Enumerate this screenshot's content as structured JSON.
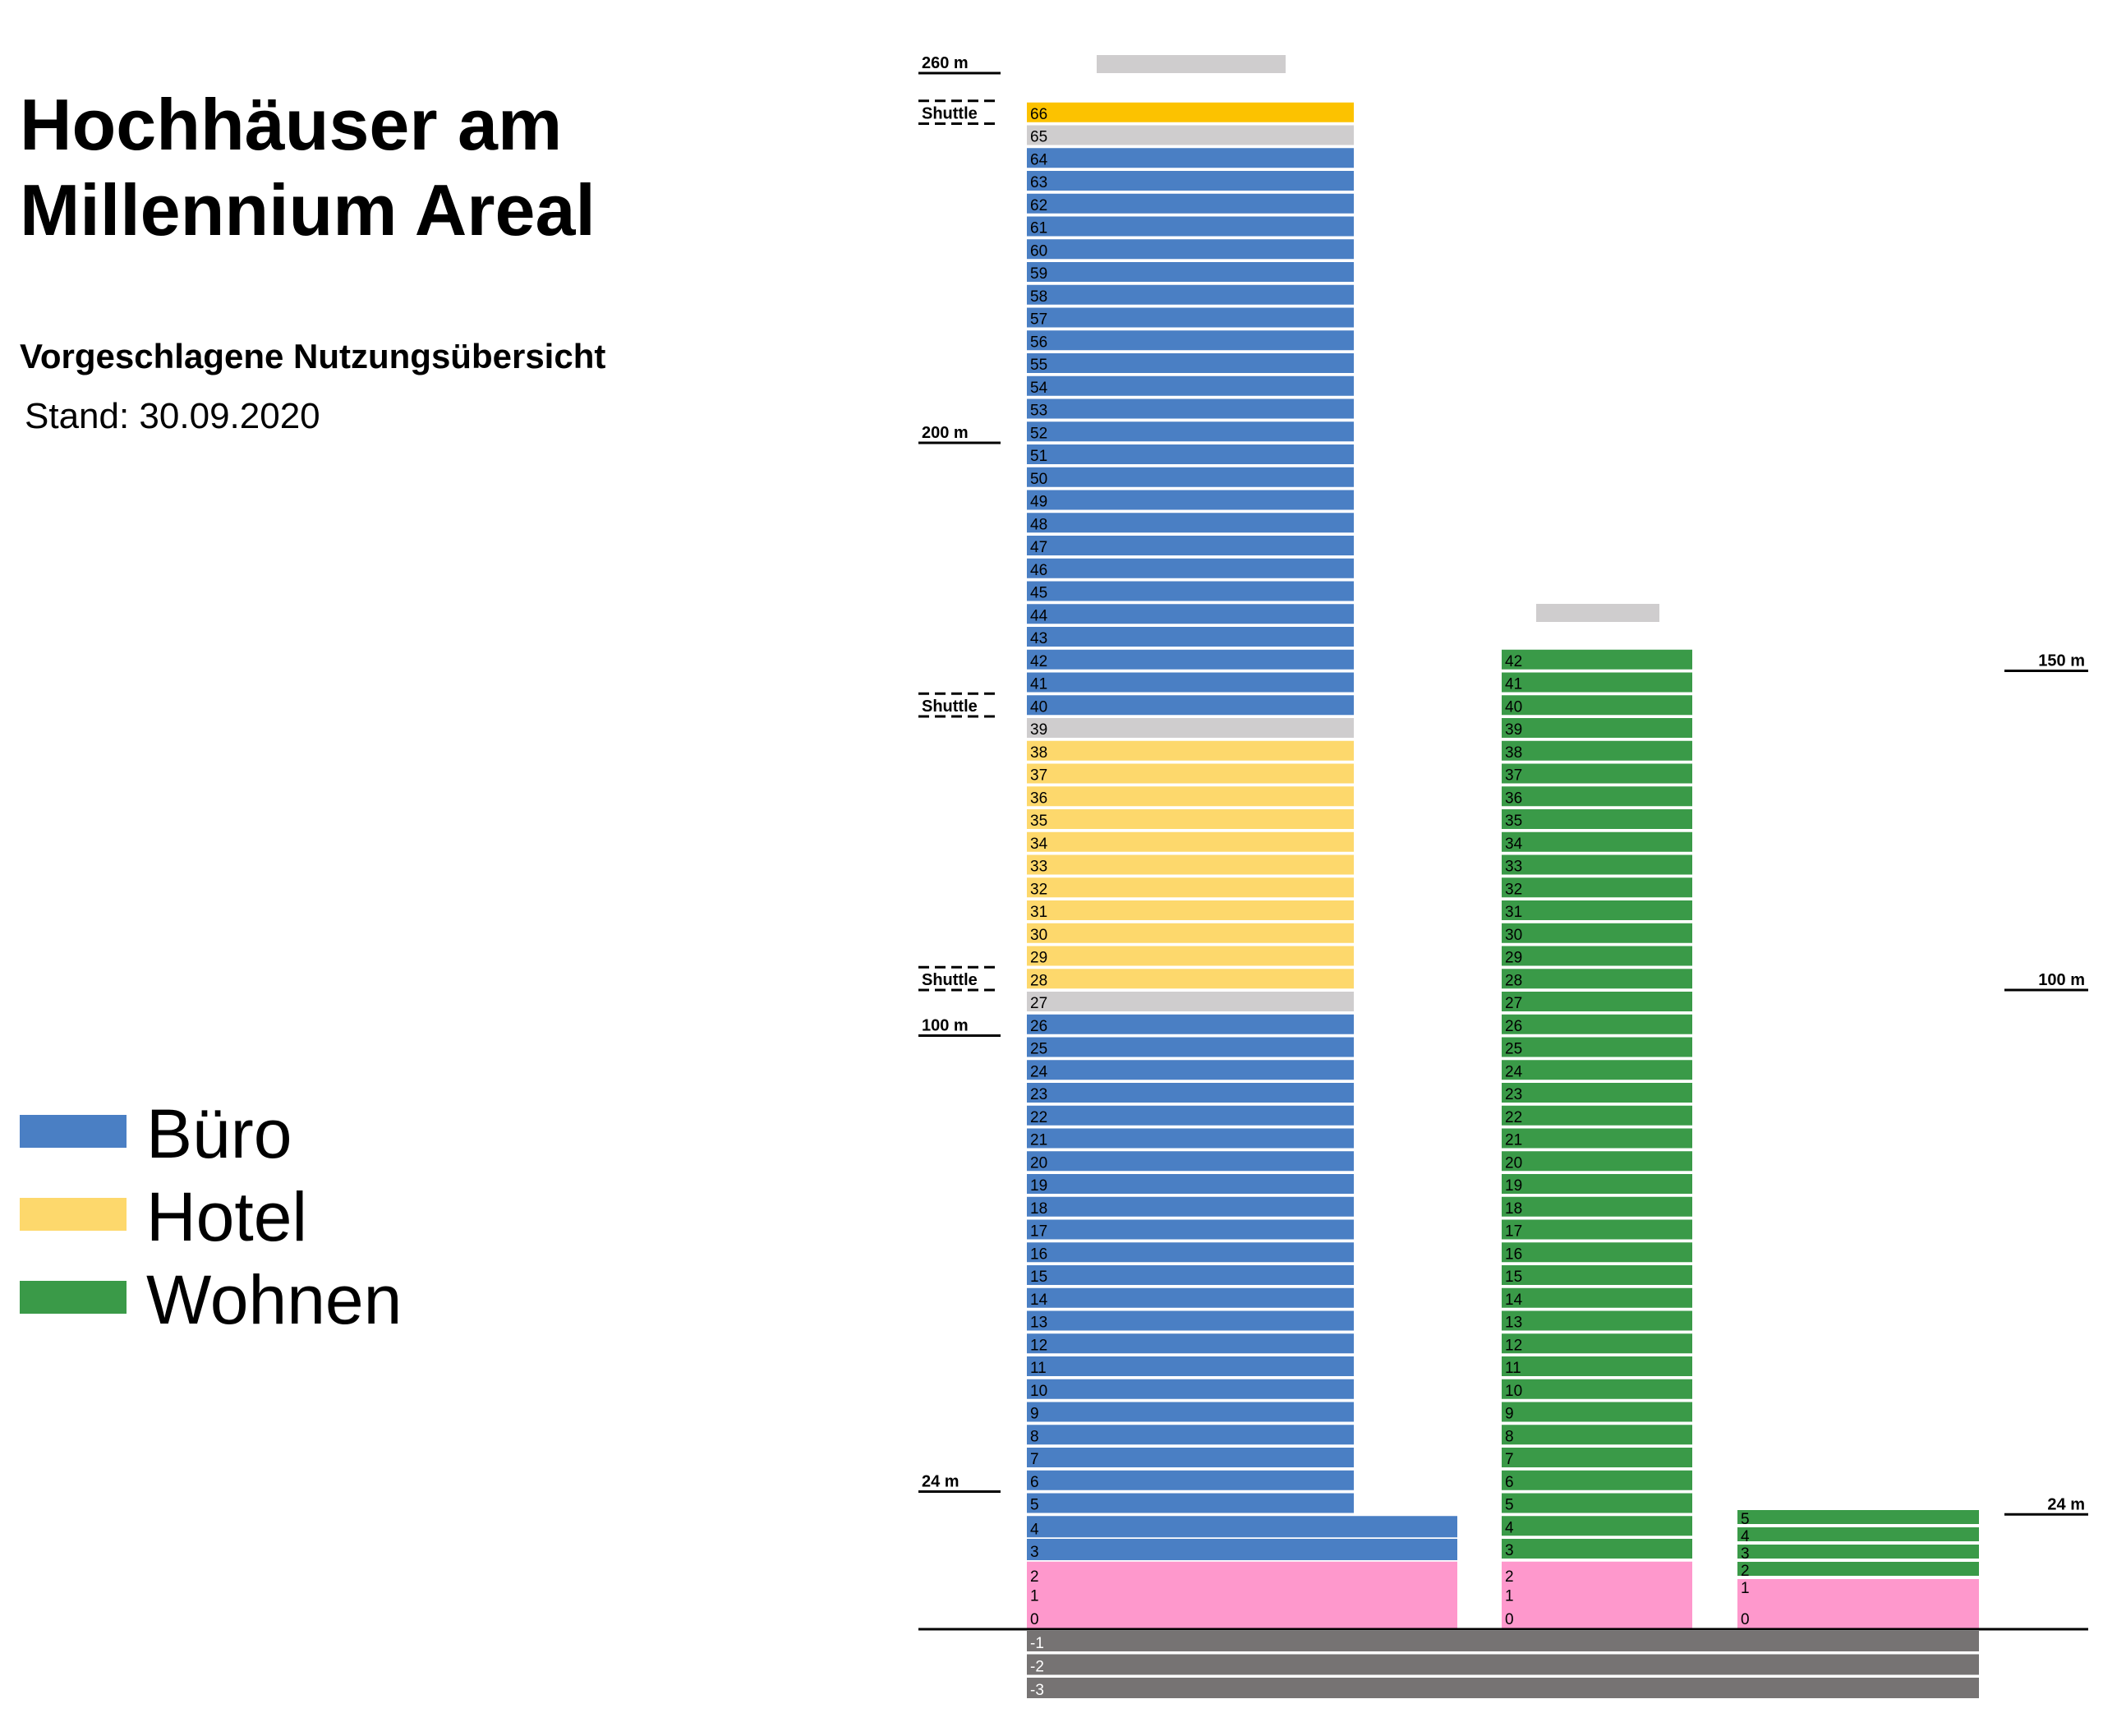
{
  "title": {
    "line1": "Hochhäuser am",
    "line2": "Millennium Areal"
  },
  "subtitle": "Vorgeschlagene Nutzungsübersicht",
  "date": "Stand: 30.09.2020",
  "colors": {
    "buero": "#4a7fc4",
    "hotel": "#fdd86c",
    "hotel_roof": "#fcc200",
    "wohnen": "#3a9a48",
    "gewerbe": "#fe98cc",
    "technik": "#cfcdce",
    "tiefgarage": "#767373",
    "marker": "#000000"
  },
  "legend": [
    {
      "label": "Büro",
      "color_key": "buero"
    },
    {
      "label": "Hotel",
      "color_key": "hotel"
    },
    {
      "label": "Wohnen",
      "color_key": "wohnen"
    }
  ],
  "towers": [
    {
      "id": "tower-1",
      "floors": [
        {
          "label": "66",
          "use": "hotel_roof"
        },
        {
          "label": "65",
          "use": "technik"
        },
        {
          "label": "64",
          "use": "buero"
        },
        {
          "label": "63",
          "use": "buero"
        },
        {
          "label": "62",
          "use": "buero"
        },
        {
          "label": "61",
          "use": "buero"
        },
        {
          "label": "60",
          "use": "buero"
        },
        {
          "label": "59",
          "use": "buero"
        },
        {
          "label": "58",
          "use": "buero"
        },
        {
          "label": "57",
          "use": "buero"
        },
        {
          "label": "56",
          "use": "buero"
        },
        {
          "label": "55",
          "use": "buero"
        },
        {
          "label": "54",
          "use": "buero"
        },
        {
          "label": "53",
          "use": "buero"
        },
        {
          "label": "52",
          "use": "buero"
        },
        {
          "label": "51",
          "use": "buero"
        },
        {
          "label": "50",
          "use": "buero"
        },
        {
          "label": "49",
          "use": "buero"
        },
        {
          "label": "48",
          "use": "buero"
        },
        {
          "label": "47",
          "use": "buero"
        },
        {
          "label": "46",
          "use": "buero"
        },
        {
          "label": "45",
          "use": "buero"
        },
        {
          "label": "44",
          "use": "buero"
        },
        {
          "label": "43",
          "use": "buero"
        },
        {
          "label": "42",
          "use": "buero"
        },
        {
          "label": "41",
          "use": "buero"
        },
        {
          "label": "40",
          "use": "buero"
        },
        {
          "label": "39",
          "use": "technik"
        },
        {
          "label": "38",
          "use": "hotel"
        },
        {
          "label": "37",
          "use": "hotel"
        },
        {
          "label": "36",
          "use": "hotel"
        },
        {
          "label": "35",
          "use": "hotel"
        },
        {
          "label": "34",
          "use": "hotel"
        },
        {
          "label": "33",
          "use": "hotel"
        },
        {
          "label": "32",
          "use": "hotel"
        },
        {
          "label": "31",
          "use": "hotel"
        },
        {
          "label": "30",
          "use": "hotel"
        },
        {
          "label": "29",
          "use": "hotel"
        },
        {
          "label": "28",
          "use": "hotel"
        },
        {
          "label": "27",
          "use": "technik"
        },
        {
          "label": "26",
          "use": "buero"
        },
        {
          "label": "25",
          "use": "buero"
        },
        {
          "label": "24",
          "use": "buero"
        },
        {
          "label": "23",
          "use": "buero"
        },
        {
          "label": "22",
          "use": "buero"
        },
        {
          "label": "21",
          "use": "buero"
        },
        {
          "label": "20",
          "use": "buero"
        },
        {
          "label": "19",
          "use": "buero"
        },
        {
          "label": "18",
          "use": "buero"
        },
        {
          "label": "17",
          "use": "buero"
        },
        {
          "label": "16",
          "use": "buero"
        },
        {
          "label": "15",
          "use": "buero"
        },
        {
          "label": "14",
          "use": "buero"
        },
        {
          "label": "13",
          "use": "buero"
        },
        {
          "label": "12",
          "use": "buero"
        },
        {
          "label": "11",
          "use": "buero"
        },
        {
          "label": "10",
          "use": "buero"
        },
        {
          "label": "9",
          "use": "buero"
        },
        {
          "label": "8",
          "use": "buero"
        },
        {
          "label": "7",
          "use": "buero"
        },
        {
          "label": "6",
          "use": "buero"
        },
        {
          "label": "5",
          "use": "buero"
        }
      ],
      "podium": [
        {
          "label": "4",
          "use": "buero"
        },
        {
          "label": "3",
          "use": "buero"
        },
        {
          "label": "2",
          "use": "gewerbe"
        },
        {
          "label": "1",
          "use": "gewerbe"
        },
        {
          "label": "0",
          "use": "gewerbe"
        }
      ]
    },
    {
      "id": "tower-2",
      "floors": [
        {
          "label": "42",
          "use": "wohnen"
        },
        {
          "label": "41",
          "use": "wohnen"
        },
        {
          "label": "40",
          "use": "wohnen"
        },
        {
          "label": "39",
          "use": "wohnen"
        },
        {
          "label": "38",
          "use": "wohnen"
        },
        {
          "label": "37",
          "use": "wohnen"
        },
        {
          "label": "36",
          "use": "wohnen"
        },
        {
          "label": "35",
          "use": "wohnen"
        },
        {
          "label": "34",
          "use": "wohnen"
        },
        {
          "label": "33",
          "use": "wohnen"
        },
        {
          "label": "32",
          "use": "wohnen"
        },
        {
          "label": "31",
          "use": "wohnen"
        },
        {
          "label": "30",
          "use": "wohnen"
        },
        {
          "label": "29",
          "use": "wohnen"
        },
        {
          "label": "28",
          "use": "wohnen"
        },
        {
          "label": "27",
          "use": "wohnen"
        },
        {
          "label": "26",
          "use": "wohnen"
        },
        {
          "label": "25",
          "use": "wohnen"
        },
        {
          "label": "24",
          "use": "wohnen"
        },
        {
          "label": "23",
          "use": "wohnen"
        },
        {
          "label": "22",
          "use": "wohnen"
        },
        {
          "label": "21",
          "use": "wohnen"
        },
        {
          "label": "20",
          "use": "wohnen"
        },
        {
          "label": "19",
          "use": "wohnen"
        },
        {
          "label": "18",
          "use": "wohnen"
        },
        {
          "label": "17",
          "use": "wohnen"
        },
        {
          "label": "16",
          "use": "wohnen"
        },
        {
          "label": "15",
          "use": "wohnen"
        },
        {
          "label": "14",
          "use": "wohnen"
        },
        {
          "label": "13",
          "use": "wohnen"
        },
        {
          "label": "12",
          "use": "wohnen"
        },
        {
          "label": "11",
          "use": "wohnen"
        },
        {
          "label": "10",
          "use": "wohnen"
        },
        {
          "label": "9",
          "use": "wohnen"
        },
        {
          "label": "8",
          "use": "wohnen"
        },
        {
          "label": "7",
          "use": "wohnen"
        },
        {
          "label": "6",
          "use": "wohnen"
        },
        {
          "label": "5",
          "use": "wohnen"
        },
        {
          "label": "4",
          "use": "wohnen"
        },
        {
          "label": "3",
          "use": "wohnen"
        },
        {
          "label": "2",
          "use": "gewerbe"
        },
        {
          "label": "1",
          "use": "gewerbe"
        },
        {
          "label": "0",
          "use": "gewerbe"
        }
      ]
    },
    {
      "id": "building-3",
      "floors": [
        {
          "label": "5",
          "use": "wohnen"
        },
        {
          "label": "4",
          "use": "wohnen"
        },
        {
          "label": "3",
          "use": "wohnen"
        },
        {
          "label": "2",
          "use": "wohnen"
        },
        {
          "label": "1",
          "use": "gewerbe"
        },
        {
          "label": "0",
          "use": "gewerbe"
        }
      ]
    }
  ],
  "basement": [
    {
      "label": "-1",
      "use": "tiefgarage"
    },
    {
      "label": "-2",
      "use": "tiefgarage"
    },
    {
      "label": "-3",
      "use": "tiefgarage"
    }
  ],
  "height_markers_left": [
    {
      "label": "260 m",
      "floor": "roof",
      "style": "solid"
    },
    {
      "label": "Shuttle",
      "floor": "66",
      "style": "shuttle"
    },
    {
      "label": "200 m",
      "floor": "51",
      "style": "solid"
    },
    {
      "label": "Shuttle",
      "floor": "40",
      "style": "shuttle"
    },
    {
      "label": "Shuttle",
      "floor": "28",
      "style": "shuttle"
    },
    {
      "label": "100 m",
      "floor": "25",
      "style": "solid"
    },
    {
      "label": "24 m",
      "floor": "5",
      "style": "solid"
    }
  ],
  "height_markers_right": [
    {
      "label": "150 m",
      "floor": "42"
    },
    {
      "label": "100 m",
      "floor": "28"
    },
    {
      "label": "24 m",
      "floor": "5"
    }
  ]
}
